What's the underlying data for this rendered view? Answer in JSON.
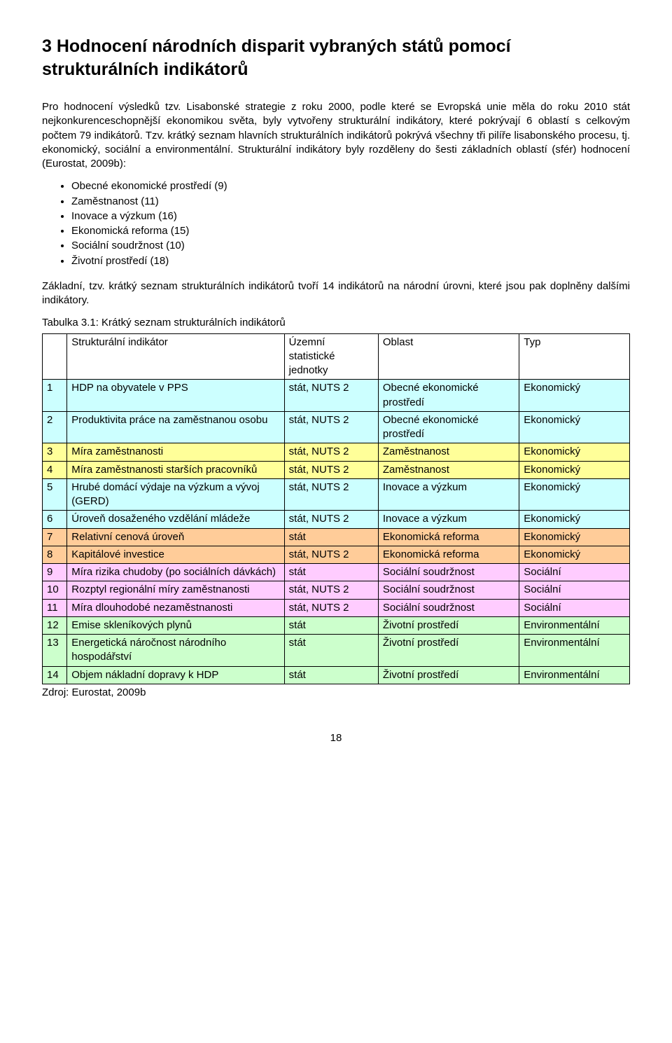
{
  "heading": "3 Hodnocení národních disparit vybraných států pomocí strukturálních indikátorů",
  "para1": "Pro hodnocení výsledků tzv. Lisabonské strategie z roku 2000, podle které se Evropská unie měla do roku 2010 stát nejkonkurenceschopnější ekonomikou světa, byly vytvořeny strukturální indikátory, které pokrývají 6 oblastí s celkovým počtem 79 indikátorů. Tzv. krátký seznam hlavních strukturálních indikátorů pokrývá všechny tři pilíře lisabonského procesu, tj. ekonomický, sociální a environmentální. Strukturální indikátory byly rozděleny do šesti základních oblastí (sfér) hodnocení (Eurostat, 2009b):",
  "bullets": [
    "Obecné ekonomické prostředí (9)",
    "Zaměstnanost (11)",
    "Inovace a výzkum (16)",
    "Ekonomická reforma (15)",
    "Sociální soudržnost (10)",
    "Životní prostředí (18)"
  ],
  "para2": "Základní, tzv. krátký seznam strukturálních indikátorů tvoří 14 indikátorů na národní úrovni, které jsou pak doplněny dalšími indikátory.",
  "table_caption": "Tabulka 3.1: Krátký seznam strukturálních indikátorů",
  "header": {
    "num": "",
    "indicator": "Strukturální indikátor",
    "units": "Územní statistické jednotky",
    "area": "Oblast",
    "type": "Typ"
  },
  "colors": {
    "cyan": "#ccffff",
    "yellow": "#ffff99",
    "orange": "#ffcc99",
    "pink": "#ffccff",
    "green": "#ccffcc",
    "white": "#ffffff"
  },
  "rows": [
    {
      "n": "1",
      "ind": "HDP na obyvatele v PPS",
      "u": "stát, NUTS 2",
      "a": "Obecné ekonomické prostředí",
      "t": "Ekonomický",
      "bg": "cyan"
    },
    {
      "n": "2",
      "ind": "Produktivita práce na zaměstnanou osobu",
      "u": "stát, NUTS 2",
      "a": "Obecné ekonomické prostředí",
      "t": "Ekonomický",
      "bg": "cyan"
    },
    {
      "n": "3",
      "ind": "Míra zaměstnanosti",
      "u": "stát, NUTS 2",
      "a": "Zaměstnanost",
      "t": "Ekonomický",
      "bg": "yellow"
    },
    {
      "n": "4",
      "ind": "Míra zaměstnanosti starších pracovníků",
      "u": "stát, NUTS 2",
      "a": "Zaměstnanost",
      "t": "Ekonomický",
      "bg": "yellow"
    },
    {
      "n": "5",
      "ind": "Hrubé domácí výdaje na výzkum a vývoj (GERD)",
      "u": "stát, NUTS 2",
      "a": "Inovace a výzkum",
      "t": "Ekonomický",
      "bg": "cyan"
    },
    {
      "n": "6",
      "ind": "Úroveň dosaženého vzdělání mládeže",
      "u": "stát, NUTS 2",
      "a": "Inovace a výzkum",
      "t": "Ekonomický",
      "bg": "cyan"
    },
    {
      "n": "7",
      "ind": "Relativní cenová úroveň",
      "u": "stát",
      "a": "Ekonomická reforma",
      "t": "Ekonomický",
      "bg": "orange"
    },
    {
      "n": "8",
      "ind": "Kapitálové investice",
      "u": "stát, NUTS 2",
      "a": "Ekonomická reforma",
      "t": "Ekonomický",
      "bg": "orange"
    },
    {
      "n": "9",
      "ind": "Míra rizika chudoby (po sociálních dávkách)",
      "u": "stát",
      "a": "Sociální soudržnost",
      "t": "Sociální",
      "bg": "pink"
    },
    {
      "n": "10",
      "ind": "Rozptyl regionální míry zaměstnanosti",
      "u": "stát, NUTS 2",
      "a": "Sociální soudržnost",
      "t": "Sociální",
      "bg": "pink"
    },
    {
      "n": "11",
      "ind": "Míra dlouhodobé nezaměstnanosti",
      "u": "stát, NUTS 2",
      "a": "Sociální soudržnost",
      "t": "Sociální",
      "bg": "pink"
    },
    {
      "n": "12",
      "ind": "Emise skleníkových plynů",
      "u": "stát",
      "a": "Životní prostředí",
      "t": "Environmentální",
      "bg": "green"
    },
    {
      "n": "13",
      "ind": "Energetická náročnost národního hospodářství",
      "u": "stát",
      "a": "Životní prostředí",
      "t": "Environmentální",
      "bg": "green"
    },
    {
      "n": "14",
      "ind": "Objem nákladní dopravy k HDP",
      "u": "stát",
      "a": "Životní prostředí",
      "t": "Environmentální",
      "bg": "green"
    }
  ],
  "source": "Zdroj: Eurostat, 2009b",
  "page_number": "18"
}
